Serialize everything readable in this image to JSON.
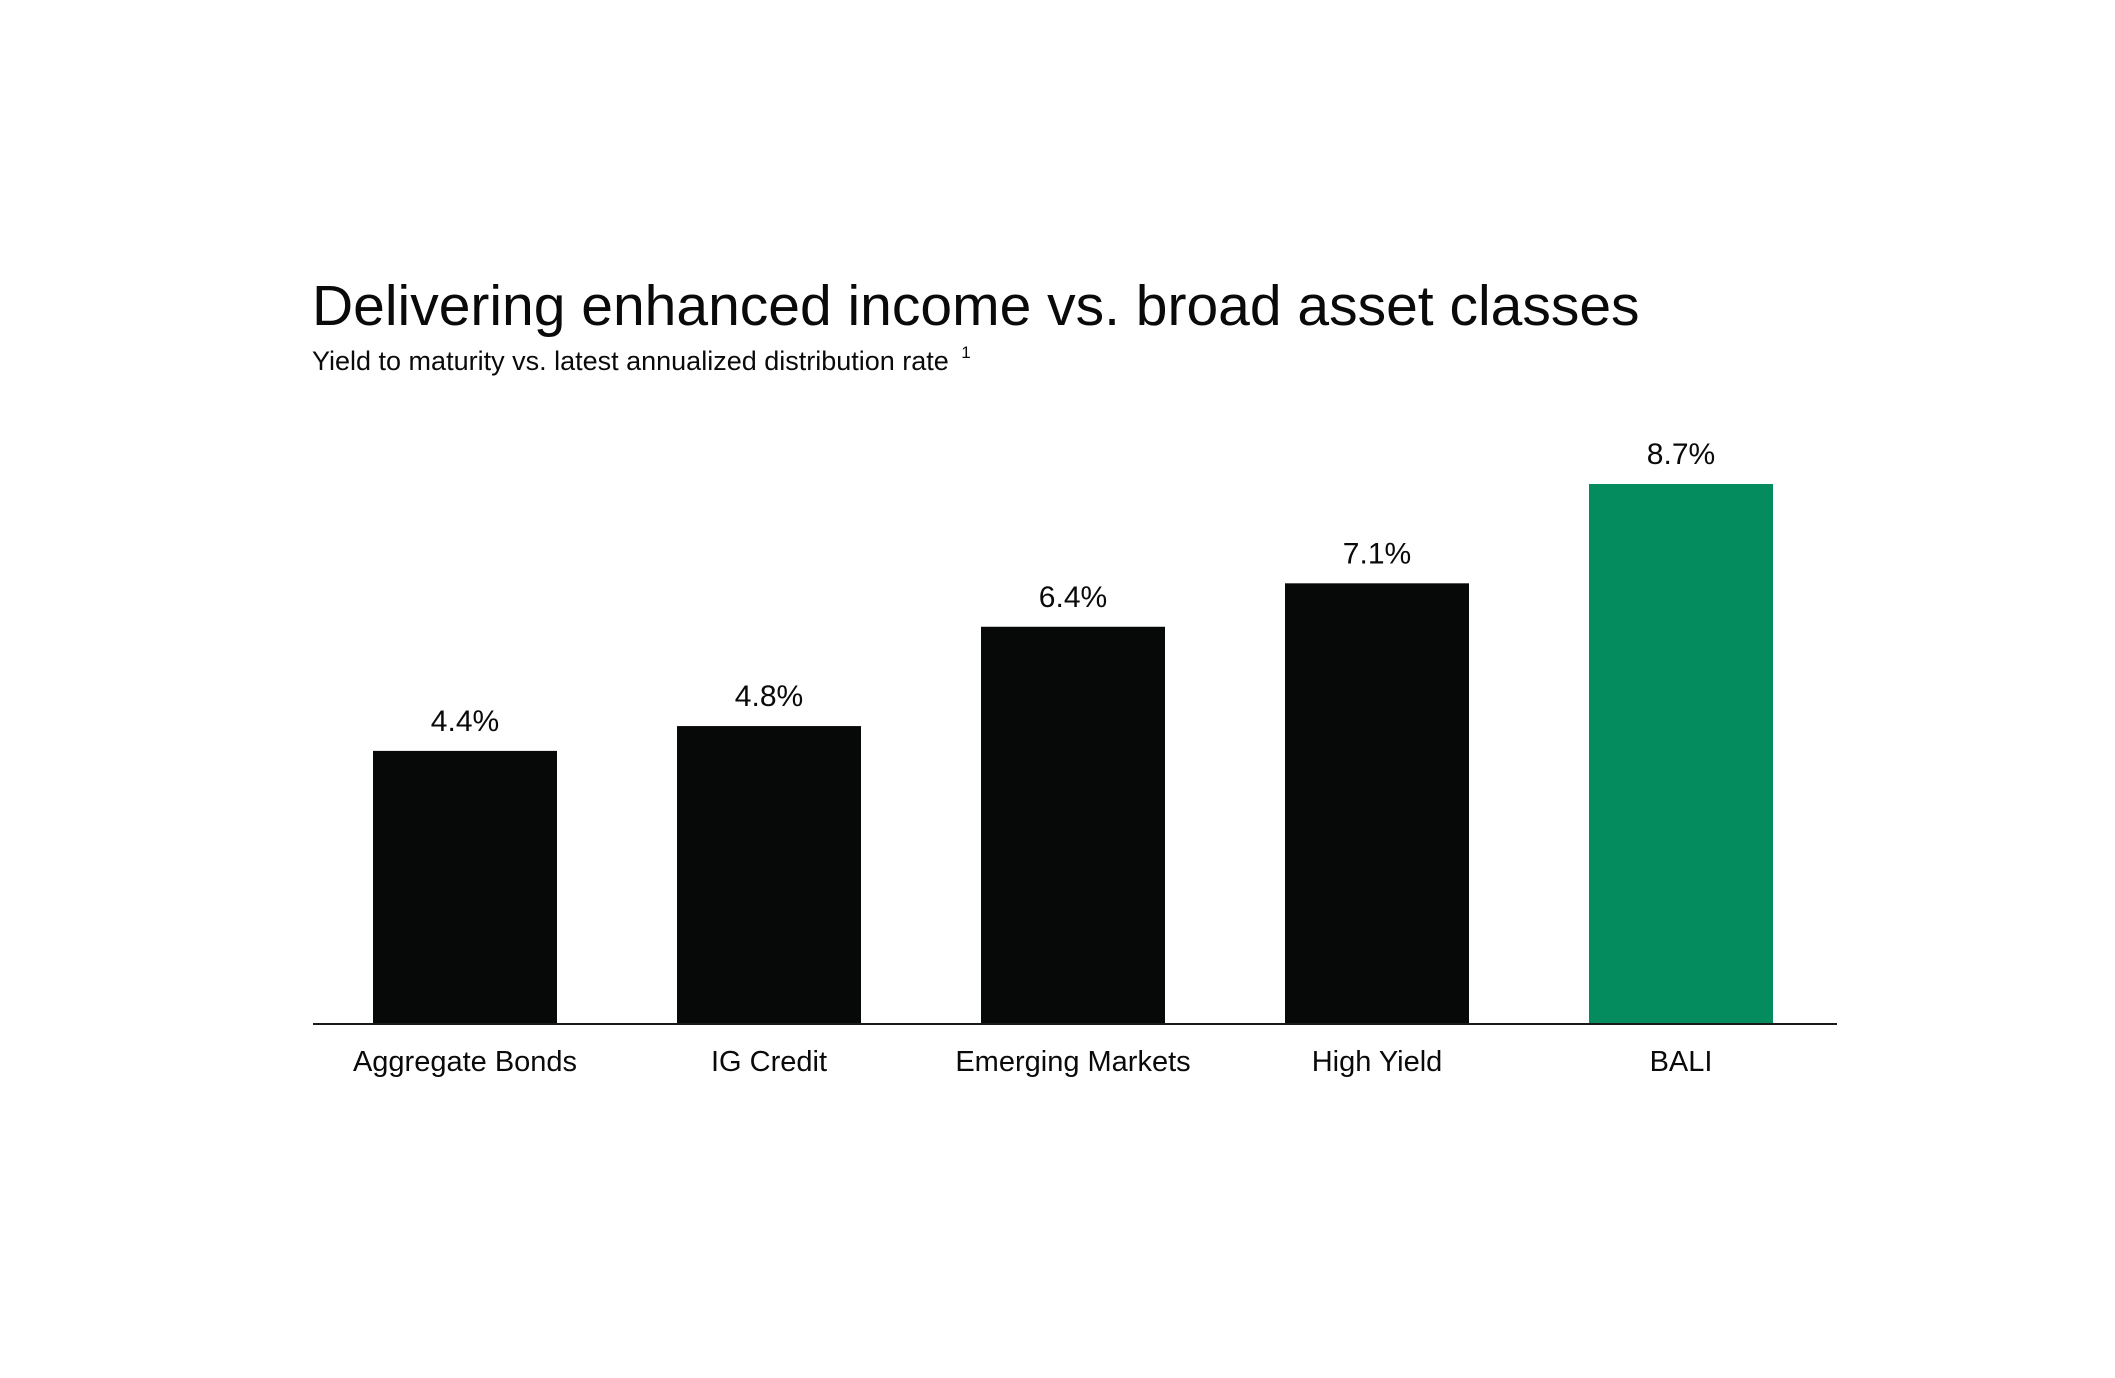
{
  "chart_data": {
    "type": "bar",
    "title": "Delivering enhanced income vs. broad asset classes",
    "subtitle": "Yield to maturity vs. latest annualized distribution rate",
    "subtitle_footnote": "1",
    "categories": [
      "Aggregate Bonds",
      "IG Credit",
      "Emerging Markets",
      "High Yield",
      "BALI"
    ],
    "values": [
      4.4,
      4.8,
      6.4,
      7.1,
      8.7
    ],
    "data_labels": [
      "4.4%",
      "4.8%",
      "6.4%",
      "7.1%",
      "8.7%"
    ],
    "colors": [
      "#070908",
      "#070908",
      "#070908",
      "#070908",
      "#048c5f"
    ],
    "xlabel": "",
    "ylabel": "",
    "ylim": [
      0,
      8.7
    ],
    "grid": false,
    "y_axis_visible": false
  }
}
